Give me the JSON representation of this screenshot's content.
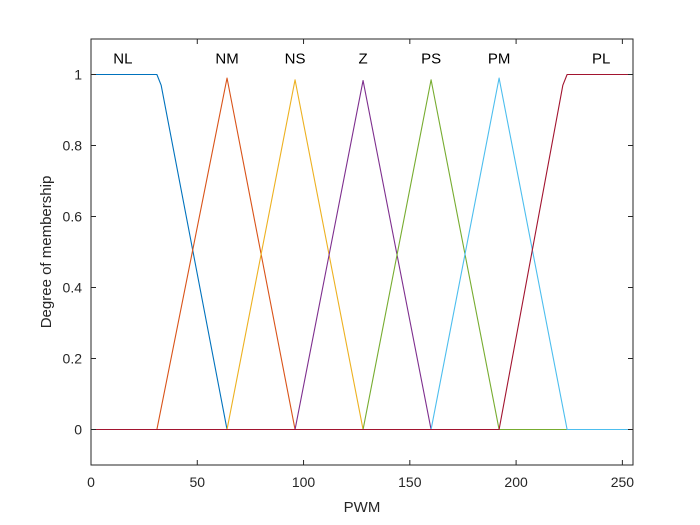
{
  "chart_data": {
    "type": "line",
    "title": "",
    "xlabel": "PWM",
    "ylabel": "Degree of membership",
    "xlim": [
      0,
      255
    ],
    "ylim": [
      -0.1,
      1.1
    ],
    "xticks": [
      0,
      50,
      100,
      150,
      200,
      250
    ],
    "yticks": [
      0,
      0.2,
      0.4,
      0.6,
      0.8,
      1
    ],
    "grid": false,
    "legend": "none",
    "series": [
      {
        "name": "NL",
        "color": "#0072bd",
        "label_at": [
          15,
          1.045
        ],
        "x": [
          0,
          31,
          33,
          64
        ],
        "y": [
          1,
          1,
          0.97,
          0
        ]
      },
      {
        "name": "NM",
        "color": "#d95319",
        "label_at": [
          64,
          1.045
        ],
        "x": [
          0,
          31,
          64,
          96,
          255
        ],
        "y": [
          0,
          0,
          0.99,
          0,
          0
        ]
      },
      {
        "name": "NS",
        "color": "#edb120",
        "label_at": [
          96,
          1.045
        ],
        "x": [
          0,
          64,
          96,
          128,
          255
        ],
        "y": [
          0,
          0,
          0.985,
          0,
          0
        ]
      },
      {
        "name": "Z",
        "color": "#7e2f8e",
        "label_at": [
          128,
          1.045
        ],
        "x": [
          0,
          96,
          128,
          160,
          255
        ],
        "y": [
          0,
          0,
          0.983,
          0,
          0
        ]
      },
      {
        "name": "PS",
        "color": "#77ac30",
        "label_at": [
          160,
          1.045
        ],
        "x": [
          0,
          128,
          160,
          192,
          255
        ],
        "y": [
          0,
          0,
          0.985,
          0,
          0
        ]
      },
      {
        "name": "PM",
        "color": "#4dbeee",
        "label_at": [
          192,
          1.045
        ],
        "x": [
          0,
          160,
          192,
          224,
          255
        ],
        "y": [
          0,
          0,
          0.99,
          0,
          0
        ]
      },
      {
        "name": "PL",
        "color": "#a2142f",
        "label_at": [
          240,
          1.045
        ],
        "x": [
          0,
          192,
          222,
          224,
          255
        ],
        "y": [
          0,
          0,
          0.97,
          1,
          1
        ]
      }
    ]
  }
}
